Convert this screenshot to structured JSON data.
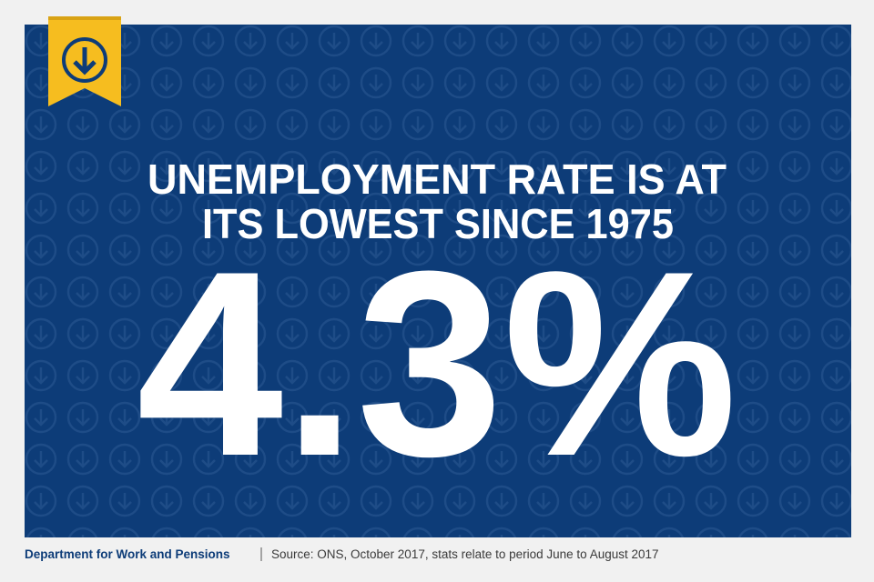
{
  "headline": {
    "lines": [
      "UNEMPLOYMENT RATE IS AT",
      "ITS LOWEST SINCE 1975"
    ]
  },
  "stat": "4.3%",
  "footer": {
    "organisation": "Department for Work and Pensions",
    "source": "Source: ONS, October 2017, stats relate to period June to August 2017"
  }
}
